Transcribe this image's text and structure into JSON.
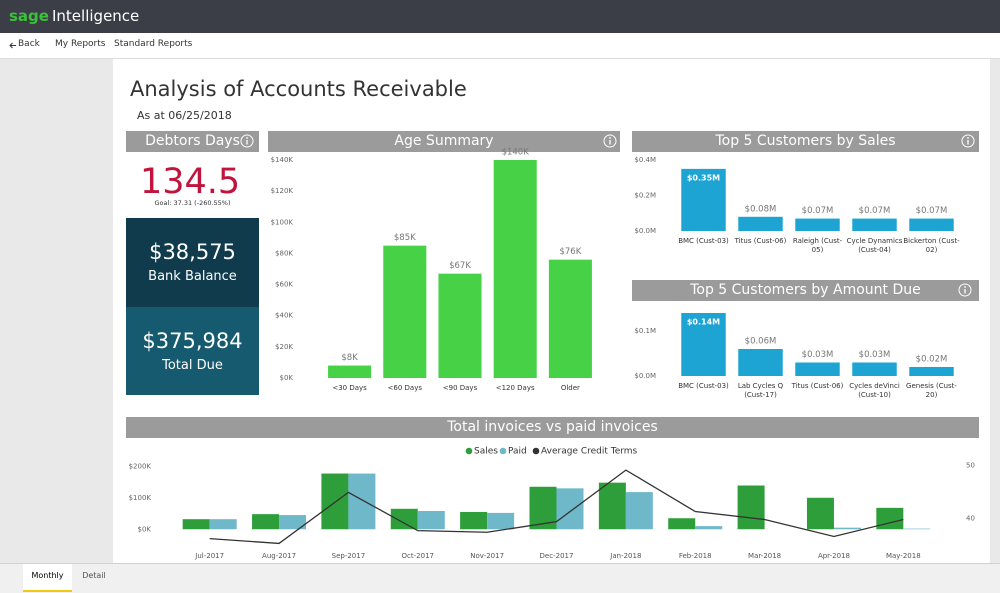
{
  "app": {
    "brand": "sage",
    "product": "Intelligence"
  },
  "nav": [
    "Back",
    "My Reports",
    "Standard Reports"
  ],
  "report": {
    "title": "Analysis of Accounts Receivable",
    "subtitle": "As at 06/25/2018"
  },
  "debtors_days": {
    "title": "Debtors Days",
    "value": 134.54,
    "goal": "Goal: 37.31 (-260.55%)"
  },
  "kpis": [
    {
      "value": "$38,575",
      "label": "Bank Balance"
    },
    {
      "value": "$375,984",
      "label": "Total Due"
    }
  ],
  "tabs": [
    "Monthly",
    "Detail"
  ],
  "chart_data": [
    {
      "type": "bar",
      "title": "Age Summary",
      "categories": [
        "<30 Days",
        "<60 Days",
        "<90 Days",
        "<120 Days",
        "Older"
      ],
      "values": [
        8000,
        85000,
        67000,
        140000,
        76000
      ],
      "value_labels": [
        "$8K",
        "$85K",
        "$67K",
        "$140K",
        "$76K"
      ],
      "color": "#47d147",
      "ylim": [
        0,
        140000
      ],
      "grid": false,
      "yticks": [
        {
          "value": 0,
          "label": "$0K"
        },
        {
          "value": 20000,
          "label": "$20K"
        },
        {
          "value": 40000,
          "label": "$40K"
        },
        {
          "value": 60000,
          "label": "$60K"
        },
        {
          "value": 80000,
          "label": "$80K"
        },
        {
          "value": 100000,
          "label": "$100K"
        },
        {
          "value": 120000,
          "label": "$120K"
        },
        {
          "value": 140000,
          "label": "$140K"
        }
      ]
    },
    {
      "type": "bar",
      "title": "Top 5 Customers by Sales",
      "categories": [
        "BMC (Cust-03)",
        "Titus (Cust-06)",
        "Raleigh (Cust-05)",
        "Cycle Dynamics (Cust-04)",
        "Bickerton (Cust-02)"
      ],
      "values": [
        350000,
        80000,
        70000,
        70000,
        70000
      ],
      "value_labels": [
        "$0.35M",
        "$0.08M",
        "$0.07M",
        "$0.07M",
        "$0.07M"
      ],
      "color": "#1ea4d3",
      "ylim": [
        0,
        400000
      ],
      "grid": false,
      "yticks": [
        {
          "value": 0,
          "label": "$0.0M"
        },
        {
          "value": 200000,
          "label": "$0.2M"
        },
        {
          "value": 400000,
          "label": "$0.4M"
        }
      ]
    },
    {
      "type": "bar",
      "title": "Top 5 Customers by Amount Due",
      "categories": [
        "BMC (Cust-03)",
        "Lab Cycles Q (Cust-17)",
        "Titus (Cust-06)",
        "Cycles deVinci (Cust-10)",
        "Genesis (Cust-20)"
      ],
      "values": [
        140000,
        60000,
        30000,
        30000,
        20000
      ],
      "value_labels": [
        "$0.14M",
        "$0.06M",
        "$0.03M",
        "$0.03M",
        "$0.02M"
      ],
      "color": "#1ea4d3",
      "ylim": [
        0,
        150000
      ],
      "grid": false,
      "yticks": [
        {
          "value": 0,
          "label": "$0.0M"
        },
        {
          "value": 100000,
          "label": "$0.1M"
        }
      ]
    },
    {
      "type": "combo",
      "title": "Total invoices vs paid invoices",
      "categories": [
        "Jul-2017",
        "Aug-2017",
        "Sep-2017",
        "Oct-2017",
        "Nov-2017",
        "Dec-2017",
        "Jan-2018",
        "Feb-2018",
        "Mar-2018",
        "Apr-2018",
        "May-2018"
      ],
      "series": [
        {
          "name": "Sales",
          "color": "#2e9e3a",
          "values": [
            32000,
            48000,
            177000,
            65000,
            55000,
            135000,
            148000,
            35000,
            139000,
            100000,
            68000
          ]
        },
        {
          "name": "Paid",
          "color": "#6fb8c9",
          "values": [
            32000,
            45000,
            177000,
            58000,
            52000,
            130000,
            118000,
            10000,
            0,
            5000,
            2000
          ]
        },
        {
          "name": "Average Credit Terms",
          "color": "#333333",
          "axis": "y2",
          "values": [
            36.2,
            35.3,
            44.9,
            37.7,
            37.4,
            39.4,
            49.1,
            41.3,
            39.8,
            36.6,
            39.8
          ]
        }
      ],
      "ylim": [
        -50000,
        220000
      ],
      "grid": false,
      "yticks": [
        {
          "value": 0,
          "label": "$0K"
        },
        {
          "value": 100000,
          "label": "$100K"
        },
        {
          "value": 200000,
          "label": "$200K"
        }
      ],
      "y2lim": [
        35,
        51
      ],
      "y2ticks": [
        40,
        50
      ]
    }
  ]
}
